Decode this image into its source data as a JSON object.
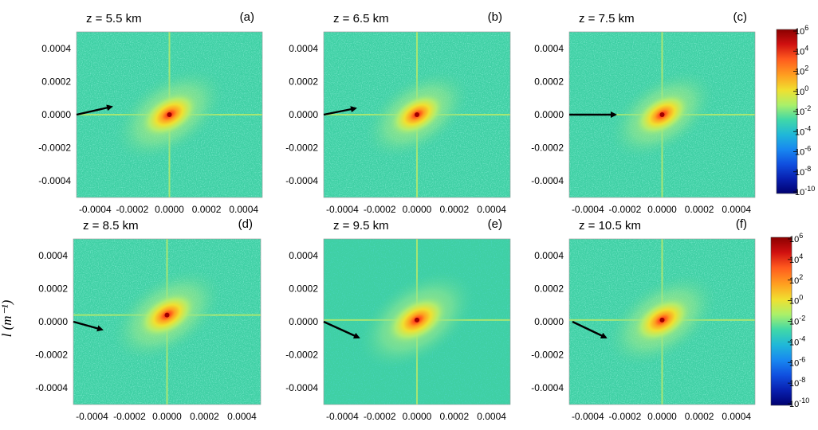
{
  "figure": {
    "ylabel": "l  (m⁻¹)"
  },
  "colors": {
    "background_field": "#3fd0a4",
    "cross_line": "#b9ea6a",
    "arrow": "#000000"
  },
  "chart_data": [
    {
      "type": "heatmap",
      "panel": "(a)",
      "title": "z = 5.5 km",
      "xlim": [
        -0.0005,
        0.0005
      ],
      "ylim": [
        -0.0005,
        0.0005
      ],
      "xticks": [
        "-0.0004",
        "-0.0002",
        "0.0000",
        "0.0002",
        "0.0004"
      ],
      "yticks": [
        "0.0004",
        "0.0002",
        "0.0000",
        "-0.0002",
        "-0.0004"
      ],
      "peak_location": [
        0.0,
        0.0
      ],
      "spread_orientation": "upper-right / lower-left diagonal",
      "arrow_direction": "pointing slightly upward to the right"
    },
    {
      "type": "heatmap",
      "panel": "(b)",
      "title": "z = 6.5 km",
      "xlim": [
        -0.0005,
        0.0005
      ],
      "ylim": [
        -0.0005,
        0.0005
      ],
      "xticks": [
        "-0.0004",
        "-0.0002",
        "0.0000",
        "0.0002",
        "0.0004"
      ],
      "yticks": [
        "0.0004",
        "0.0002",
        "0.0000",
        "-0.0002",
        "-0.0004"
      ],
      "peak_location": [
        0.0,
        0.0
      ],
      "spread_orientation": "upper-right / lower-left diagonal",
      "arrow_direction": "pointing slightly upward to the right"
    },
    {
      "type": "heatmap",
      "panel": "(c)",
      "title": "z = 7.5 km",
      "xlim": [
        -0.0005,
        0.0005
      ],
      "ylim": [
        -0.0005,
        0.0005
      ],
      "xticks": [
        "-0.0004",
        "-0.0002",
        "0.0000",
        "0.0002",
        "0.0004"
      ],
      "yticks": [
        "0.0004",
        "0.0002",
        "0.0000",
        "-0.0002",
        "-0.0004"
      ],
      "peak_location": [
        0.0,
        0.0
      ],
      "spread_orientation": "upper-right / lower-left diagonal",
      "arrow_direction": "pointing nearly horizontally to the right"
    },
    {
      "type": "heatmap",
      "panel": "(d)",
      "title": "z = 8.5 km",
      "xlim": [
        -0.0005,
        0.0005
      ],
      "ylim": [
        -0.0005,
        0.0005
      ],
      "xticks": [
        "-0.0004",
        "-0.0002",
        "0.0000",
        "0.0002",
        "0.0004"
      ],
      "yticks": [
        "0.0004",
        "0.0002",
        "0.0000",
        "-0.0002",
        "-0.0004"
      ],
      "peak_location": [
        0.0,
        4e-05
      ],
      "spread_orientation": "upper-right / lower-left diagonal",
      "arrow_direction": "pointing slightly downward to the right"
    },
    {
      "type": "heatmap",
      "panel": "(e)",
      "title": "z = 9.5 km",
      "xlim": [
        -0.0005,
        0.0005
      ],
      "ylim": [
        -0.0005,
        0.0005
      ],
      "xticks": [
        "-0.0004",
        "-0.0002",
        "0.0000",
        "0.0002",
        "0.0004"
      ],
      "yticks": [
        "0.0004",
        "0.0002",
        "0.0000",
        "-0.0002",
        "-0.0004"
      ],
      "peak_location": [
        0.0,
        1e-05
      ],
      "spread_orientation": "upper-right / lower-left diagonal",
      "arrow_direction": "pointing downward to the right"
    },
    {
      "type": "heatmap",
      "panel": "(f)",
      "title": "z = 10.5 km",
      "xlim": [
        -0.0005,
        0.0005
      ],
      "ylim": [
        -0.0005,
        0.0005
      ],
      "xticks": [
        "-0.0004",
        "-0.0002",
        "0.0000",
        "0.0002",
        "0.0004"
      ],
      "yticks": [
        "0.0004",
        "0.0002",
        "0.0000",
        "-0.0002",
        "-0.0004"
      ],
      "peak_location": [
        0.0,
        1e-05
      ],
      "spread_orientation": "upper-right / lower-left diagonal",
      "arrow_direction": "pointing downward to the right"
    }
  ],
  "colorbar": {
    "scale": "log",
    "range": [
      1e-10,
      1000000.0
    ],
    "tick_exponents": [
      "6",
      "4",
      "2",
      "0",
      "-2",
      "-4",
      "-6",
      "-8",
      "-10"
    ],
    "tick_base": "10",
    "colors": [
      "#8b0000",
      "#d01010",
      "#ff5a1e",
      "#ffa020",
      "#f0e030",
      "#aaf06a",
      "#40d8a8",
      "#20b8d8",
      "#1888f0",
      "#1050e0",
      "#0820b0",
      "#000070"
    ]
  }
}
